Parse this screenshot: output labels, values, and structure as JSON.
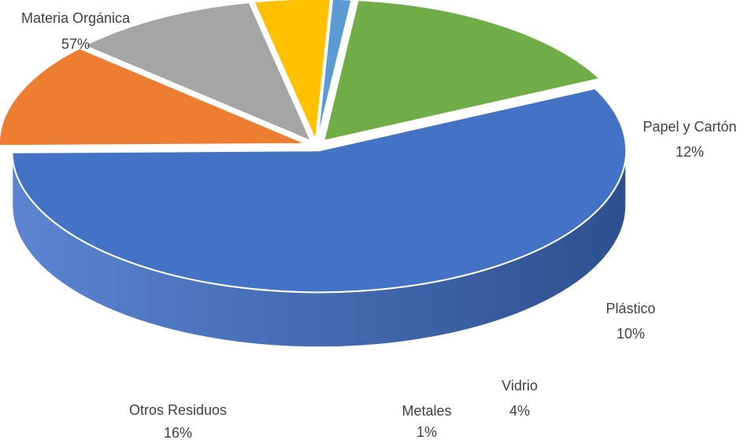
{
  "chart_data": {
    "type": "pie",
    "style": "3d-exploded-depth",
    "title": "",
    "slices": [
      {
        "label": "Materia Orgánica",
        "percent_label": "57%",
        "value": 57,
        "color": "#4472C4",
        "side_dark": "#2E5090",
        "side_light": "#5B85D2"
      },
      {
        "label": "Papel y Cartón",
        "percent_label": "12%",
        "value": 12,
        "color": "#ED7D31",
        "side_dark": "#A85118",
        "side_light": "#C96A2A"
      },
      {
        "label": "Plástico",
        "percent_label": "10%",
        "value": 10,
        "color": "#A5A5A5",
        "side_dark": "#2B2B2B",
        "side_light": "#4A4A4A"
      },
      {
        "label": "Vidrio",
        "percent_label": "4%",
        "value": 4,
        "color": "#FFC000",
        "side_dark": "#5E4300",
        "side_light": "#7A5700"
      },
      {
        "label": "Metales",
        "percent_label": "1%",
        "value": 1,
        "color": "#5B9BD5",
        "side_dark": "#1F3550",
        "side_light": "#2B4A6E"
      },
      {
        "label": "Otros Residuos",
        "percent_label": "16%",
        "value": 16,
        "color": "#70AD47",
        "side_dark": "#2F4E1F",
        "side_light": "#5C9038"
      }
    ]
  }
}
